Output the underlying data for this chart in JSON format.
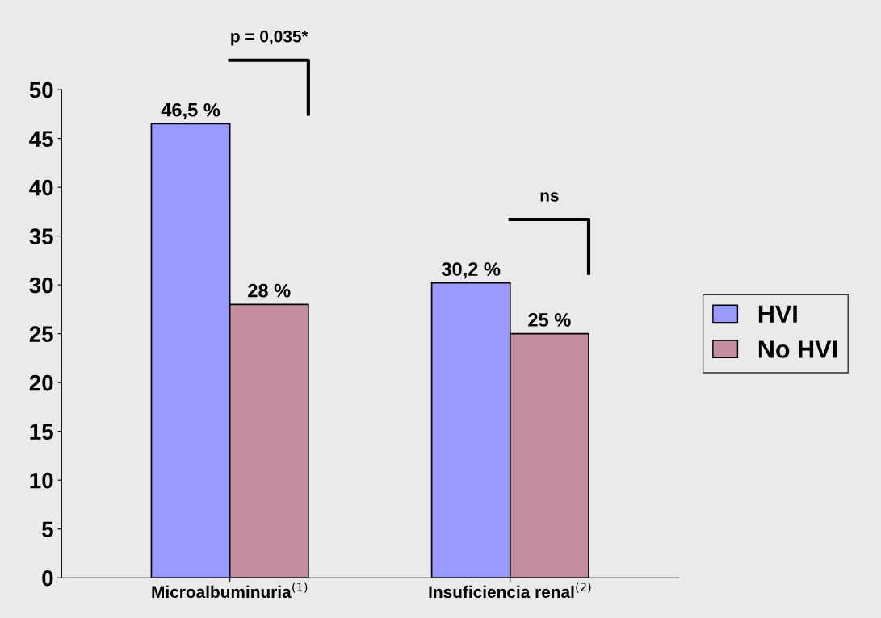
{
  "chart_data": {
    "type": "bar",
    "categories": [
      "Microalbuminuria$^{(1)}$",
      "Insuficiencia renal$^{(2)}$"
    ],
    "series": [
      {
        "name": "HVI",
        "color": "#9999ff",
        "values": [
          46.5,
          30.2
        ],
        "value_labels": [
          "46,5 %",
          "30,2 %"
        ]
      },
      {
        "name": "No HVI",
        "color": "#c48da0",
        "values": [
          28,
          25
        ],
        "value_labels": [
          "28 %",
          "25 %"
        ]
      }
    ],
    "ylim": [
      0,
      50
    ],
    "yticks": [
      0,
      5,
      10,
      15,
      20,
      25,
      30,
      35,
      40,
      45,
      50
    ],
    "grid": false,
    "legend": "right",
    "annotations": [
      "p = 0,035*",
      "ns"
    ]
  }
}
